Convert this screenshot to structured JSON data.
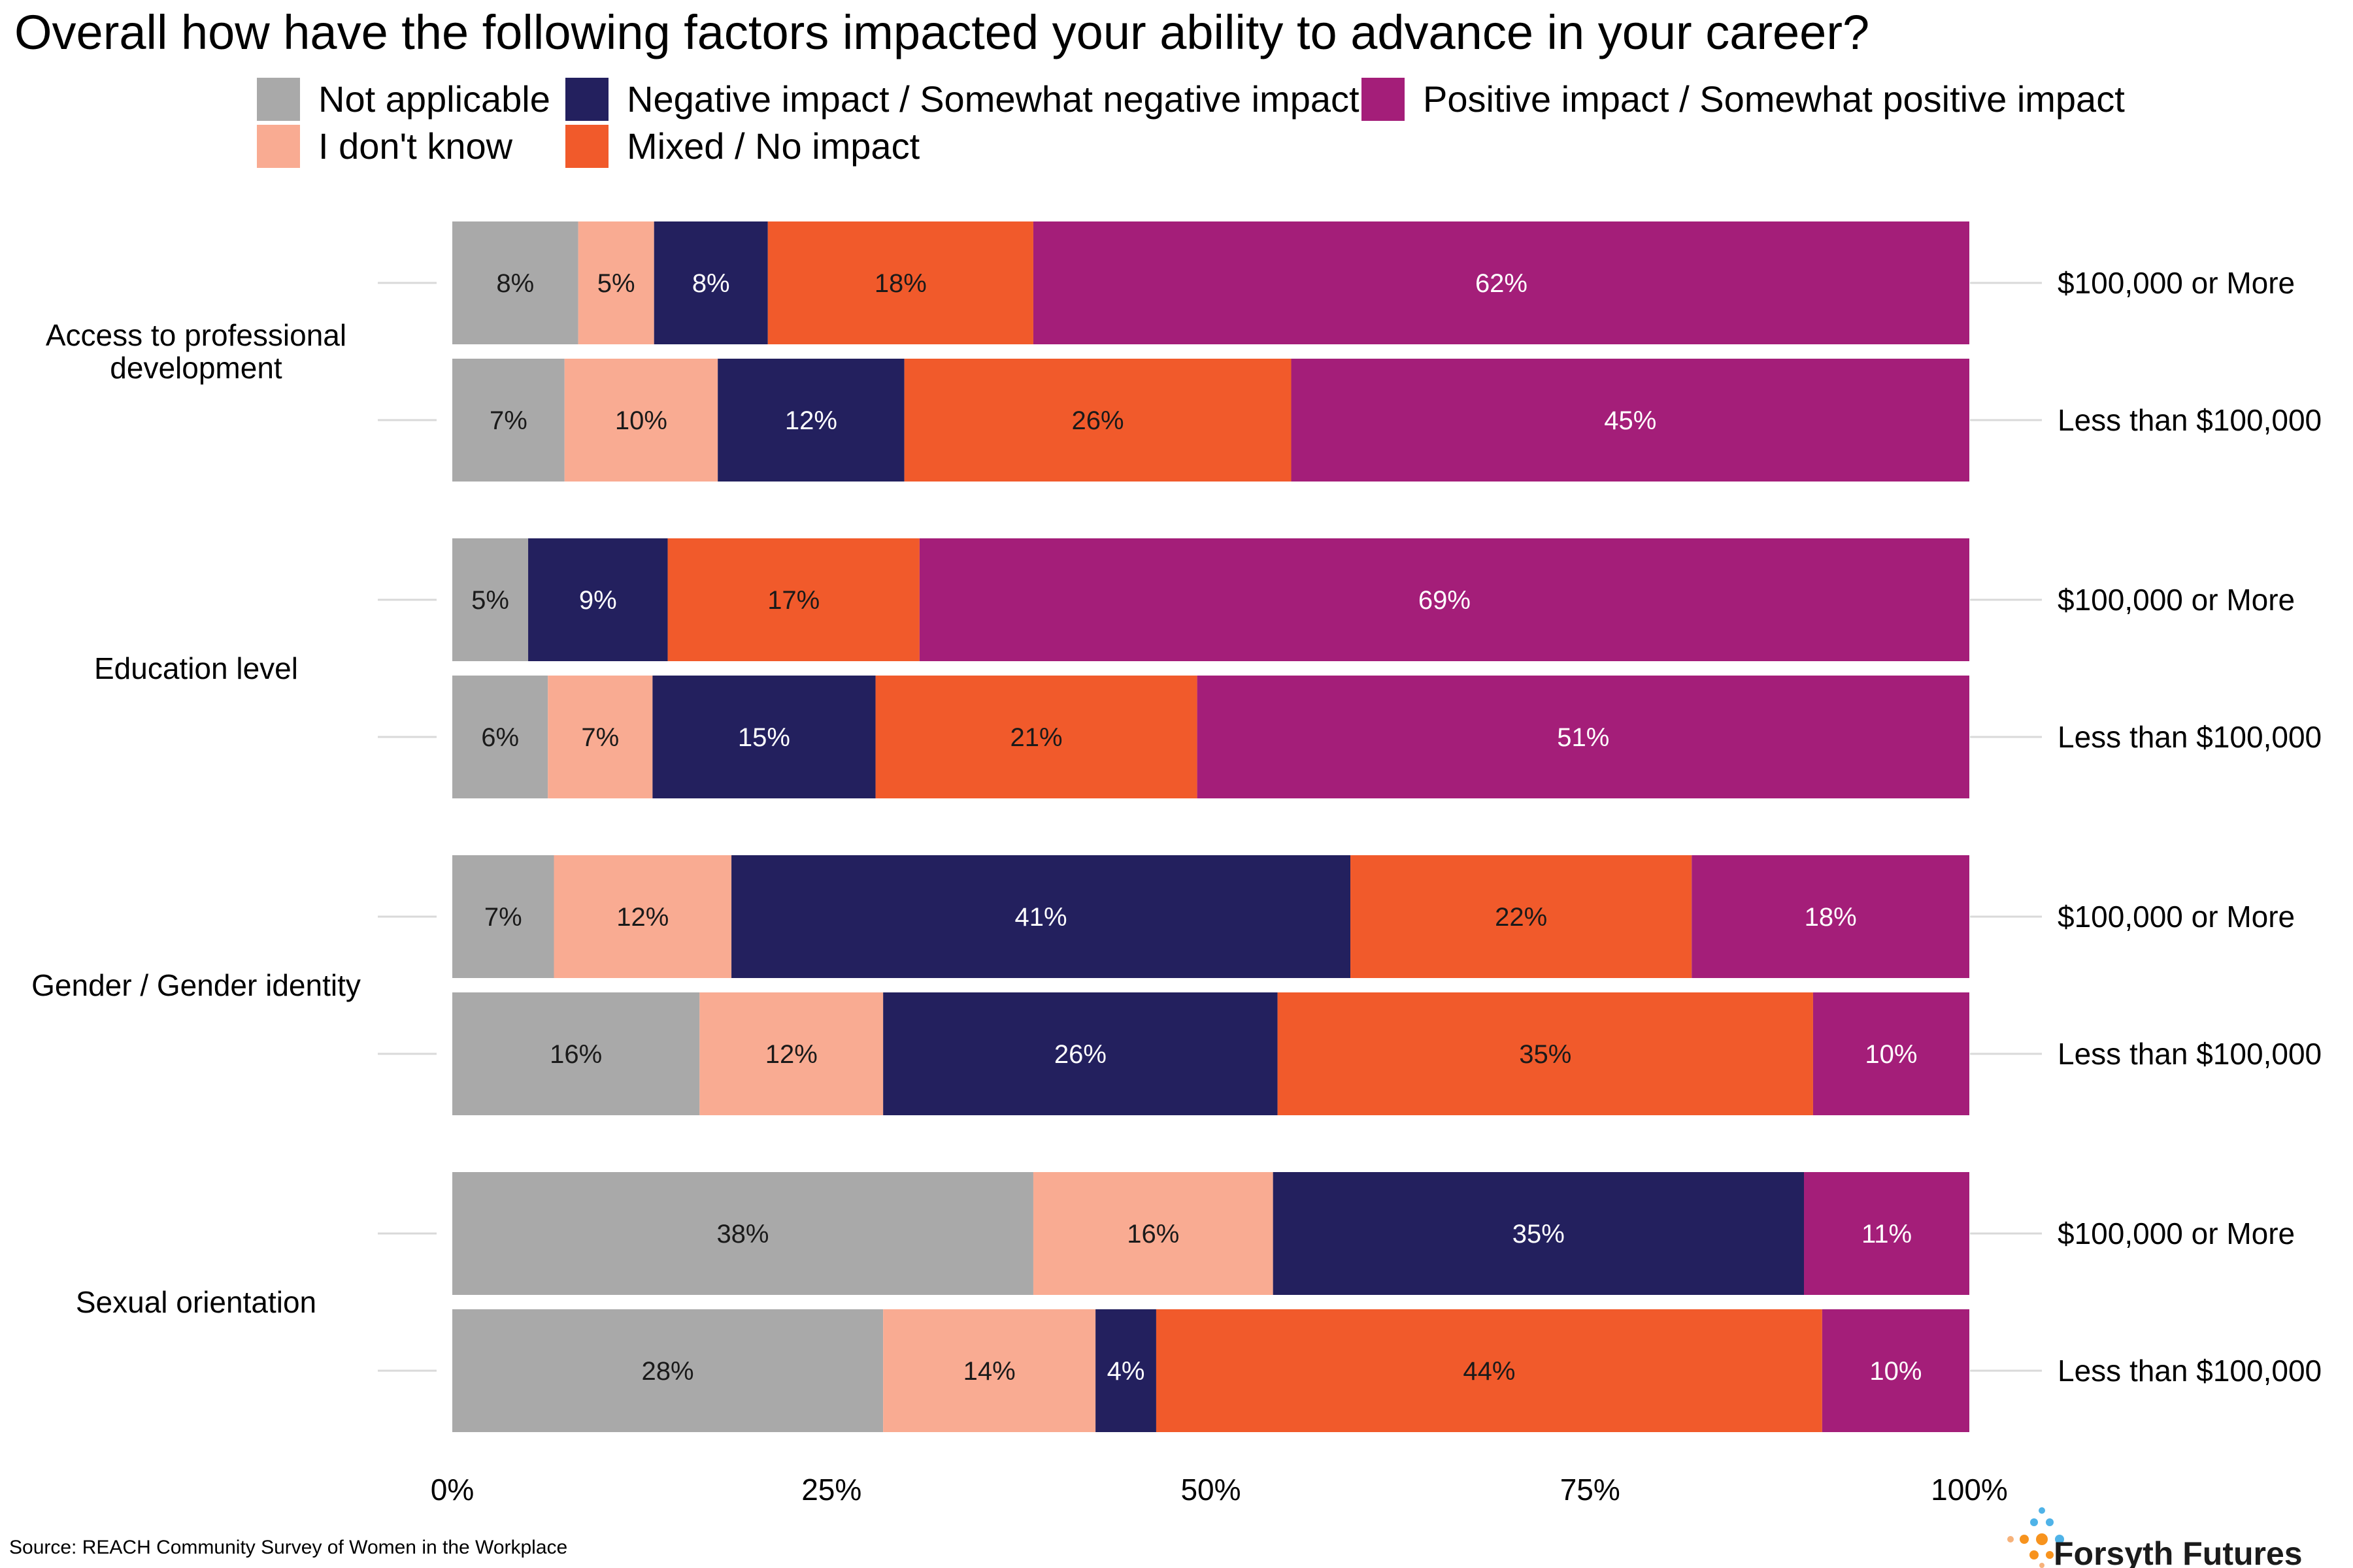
{
  "chart_data": {
    "type": "bar",
    "orientation": "horizontal",
    "stacked": "percent",
    "title": "Overall how have the following factors impacted your ability to advance in your career?",
    "xlabel": "",
    "ylabel": "",
    "xlim": [
      0,
      100
    ],
    "x_ticks": [
      "0%",
      "25%",
      "50%",
      "75%",
      "100%"
    ],
    "legend_position": "top",
    "grid": false,
    "series": [
      {
        "name": "Not applicable",
        "color": "#A9A9A9",
        "label_color": "#1a1a1a"
      },
      {
        "name": "I don't know",
        "color": "#F9AB92",
        "label_color": "#1a1a1a"
      },
      {
        "name": "Negative impact / Somewhat negative impact",
        "color": "#23205E",
        "label_color": "#ffffff"
      },
      {
        "name": "Mixed / No impact",
        "color": "#F15A2B",
        "label_color": "#1a1a1a"
      },
      {
        "name": "Positive impact / Somewhat positive impact",
        "color": "#A41E79",
        "label_color": "#ffffff"
      }
    ],
    "legend_layout": [
      [
        0,
        2,
        4
      ],
      [
        1,
        3
      ]
    ],
    "factors": [
      {
        "label": [
          "Access to professional",
          "development"
        ],
        "bars": [
          {
            "group": "$100,000 or More",
            "values": [
              8.3,
              5.0,
              7.5,
              17.5,
              61.7
            ],
            "labels": [
              "8%",
              "5%",
              "8%",
              "18%",
              "62%"
            ]
          },
          {
            "group": "Less than $100,000",
            "values": [
              7.4,
              10.1,
              12.3,
              25.5,
              44.7
            ],
            "labels": [
              "7%",
              "10%",
              "12%",
              "26%",
              "45%"
            ]
          }
        ]
      },
      {
        "label": [
          "Education level"
        ],
        "bars": [
          {
            "group": "$100,000 or More",
            "values": [
              5.0,
              0,
              9.2,
              16.6,
              69.2
            ],
            "labels": [
              "5%",
              "",
              "9%",
              "17%",
              "69%"
            ]
          },
          {
            "group": "Less than $100,000",
            "values": [
              6.3,
              6.9,
              14.7,
              21.2,
              50.9
            ],
            "labels": [
              "6%",
              "7%",
              "15%",
              "21%",
              "51%"
            ]
          }
        ]
      },
      {
        "label": [
          "Gender / Gender identity"
        ],
        "bars": [
          {
            "group": "$100,000 or More",
            "values": [
              6.7,
              11.7,
              40.8,
              22.5,
              18.3
            ],
            "labels": [
              "7%",
              "12%",
              "41%",
              "22%",
              "18%"
            ]
          },
          {
            "group": "Less than $100,000",
            "values": [
              16.3,
              12.1,
              26.0,
              35.3,
              10.3
            ],
            "labels": [
              "16%",
              "12%",
              "26%",
              "35%",
              "10%"
            ]
          }
        ]
      },
      {
        "label": [
          "Sexual orientation"
        ],
        "bars": [
          {
            "group": "$100,000 or More",
            "values": [
              38.3,
              15.8,
              35.0,
              0,
              10.9
            ],
            "labels": [
              "38%",
              "16%",
              "35%",
              "",
              "11%"
            ]
          },
          {
            "group": "Less than $100,000",
            "values": [
              28.4,
              14.0,
              4.0,
              43.9,
              9.7
            ],
            "labels": [
              "28%",
              "14%",
              "4%",
              "44%",
              "10%"
            ]
          }
        ]
      }
    ]
  },
  "footer": {
    "source": "Source: REACH Community Survey of Women in the Workplace",
    "brand": "Forsyth Futures"
  }
}
